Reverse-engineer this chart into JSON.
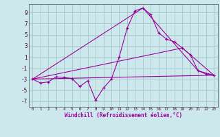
{
  "xlabel": "Windchill (Refroidissement éolien,°C)",
  "bg_color": "#cce8ec",
  "grid_color": "#aacccc",
  "line_color": "#990099",
  "yticks": [
    -7,
    -5,
    -3,
    -1,
    1,
    3,
    5,
    7,
    9
  ],
  "xticks": [
    0,
    1,
    2,
    3,
    4,
    5,
    6,
    7,
    8,
    9,
    10,
    11,
    12,
    13,
    14,
    15,
    16,
    17,
    18,
    19,
    20,
    21,
    22,
    23
  ],
  "ylim": [
    -8,
    10.5
  ],
  "xlim": [
    -0.5,
    23.5
  ],
  "series1_x": [
    0,
    1,
    2,
    3,
    4,
    5,
    6,
    7,
    8,
    9,
    10,
    11,
    12,
    13,
    14,
    15,
    16,
    17,
    18,
    19,
    20,
    21,
    22,
    23
  ],
  "series1_y": [
    -3.0,
    -3.7,
    -3.5,
    -2.6,
    -2.7,
    -2.9,
    -4.3,
    -3.3,
    -6.8,
    -4.6,
    -3.0,
    1.0,
    6.2,
    9.3,
    9.8,
    8.6,
    5.3,
    4.2,
    3.7,
    2.6,
    1.4,
    -1.5,
    -2.1,
    -2.3
  ],
  "series2_x": [
    0,
    14,
    21,
    23
  ],
  "series2_y": [
    -3.0,
    9.8,
    -1.5,
    -2.3
  ],
  "series3_x": [
    0,
    19,
    23
  ],
  "series3_y": [
    -3.0,
    2.6,
    -2.3
  ],
  "series4_x": [
    0,
    23
  ],
  "series4_y": [
    -3.0,
    -2.3
  ]
}
